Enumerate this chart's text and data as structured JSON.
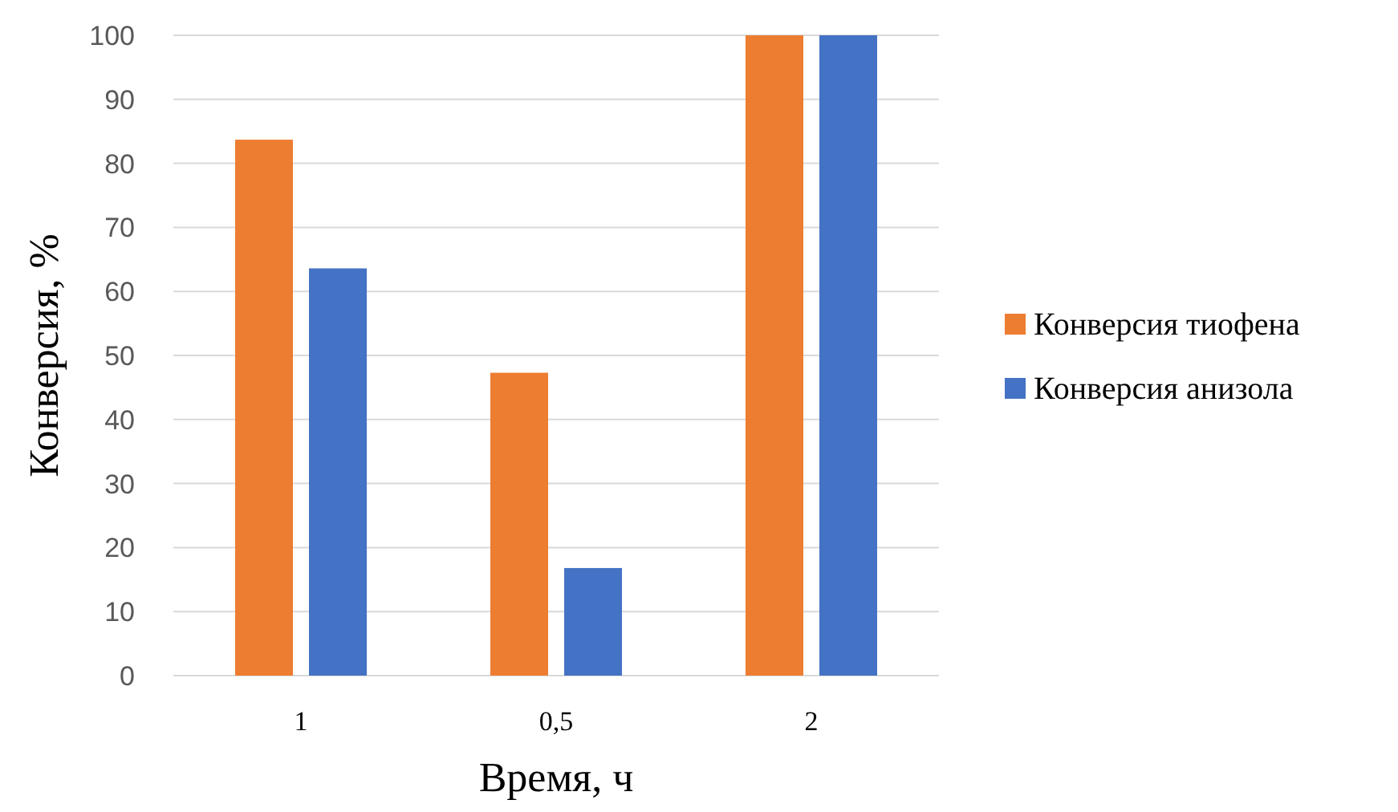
{
  "chart_data": {
    "type": "bar",
    "xlabel": "Время, ч",
    "ylabel": "Конверсия, %",
    "categories": [
      "1",
      "0,5",
      "2"
    ],
    "series": [
      {
        "name": "Конверсия тиофена",
        "color": "#ed7d31",
        "values": [
          83.7,
          47.3,
          100
        ]
      },
      {
        "name": "Конверсия анизола",
        "color": "#4472c4",
        "values": [
          63.6,
          16.8,
          100
        ]
      }
    ],
    "ylim": [
      0,
      100
    ],
    "yticks": [
      0,
      10,
      20,
      30,
      40,
      50,
      60,
      70,
      80,
      90,
      100
    ],
    "grid": "y",
    "legend": "right"
  }
}
